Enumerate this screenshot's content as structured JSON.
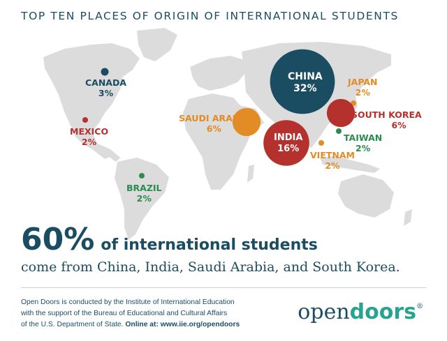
{
  "title": "TOP TEN PLACES OF ORIGIN OF INTERNATIONAL STUDENTS",
  "colors": {
    "navy": "#1b4d62",
    "red": "#b5312e",
    "orange": "#e38b25",
    "green": "#2e8b4f",
    "land": "#dcdcdc"
  },
  "countries": [
    {
      "name": "CANADA",
      "pct": "3%",
      "value": 3,
      "color": "#1b4d62"
    },
    {
      "name": "MEXICO",
      "pct": "2%",
      "value": 2,
      "color": "#b5312e"
    },
    {
      "name": "BRAZIL",
      "pct": "2%",
      "value": 2,
      "color": "#2e8b4f"
    },
    {
      "name": "SAUDI ARABIA",
      "pct": "6%",
      "value": 6,
      "color": "#e38b25"
    },
    {
      "name": "CHINA",
      "pct": "32%",
      "value": 32,
      "color": "#1b4d62"
    },
    {
      "name": "INDIA",
      "pct": "16%",
      "value": 16,
      "color": "#b5312e"
    },
    {
      "name": "JAPAN",
      "pct": "2%",
      "value": 2,
      "color": "#e38b25"
    },
    {
      "name": "SOUTH KOREA",
      "pct": "6%",
      "value": 6,
      "color": "#b5312e"
    },
    {
      "name": "TAIWAN",
      "pct": "2%",
      "value": 2,
      "color": "#2e8b4f"
    },
    {
      "name": "VIETNAM",
      "pct": "2%",
      "value": 2,
      "color": "#e38b25"
    }
  ],
  "headline": {
    "big": "60%",
    "rest": "of international students",
    "sub": "come from China, India, Saudi Arabia, and South Korea."
  },
  "footer": {
    "line1": "Open Doors is conducted by the Institute of International Education",
    "line2": "with the support of the Bureau of Educational and Cultural Affairs",
    "line3_plain": "of the U.S. Department of State. ",
    "line3_bold": "Online at: www.iie.org/opendoors"
  },
  "logo": {
    "open": "open",
    "doors": "doors",
    "mark": "®"
  }
}
